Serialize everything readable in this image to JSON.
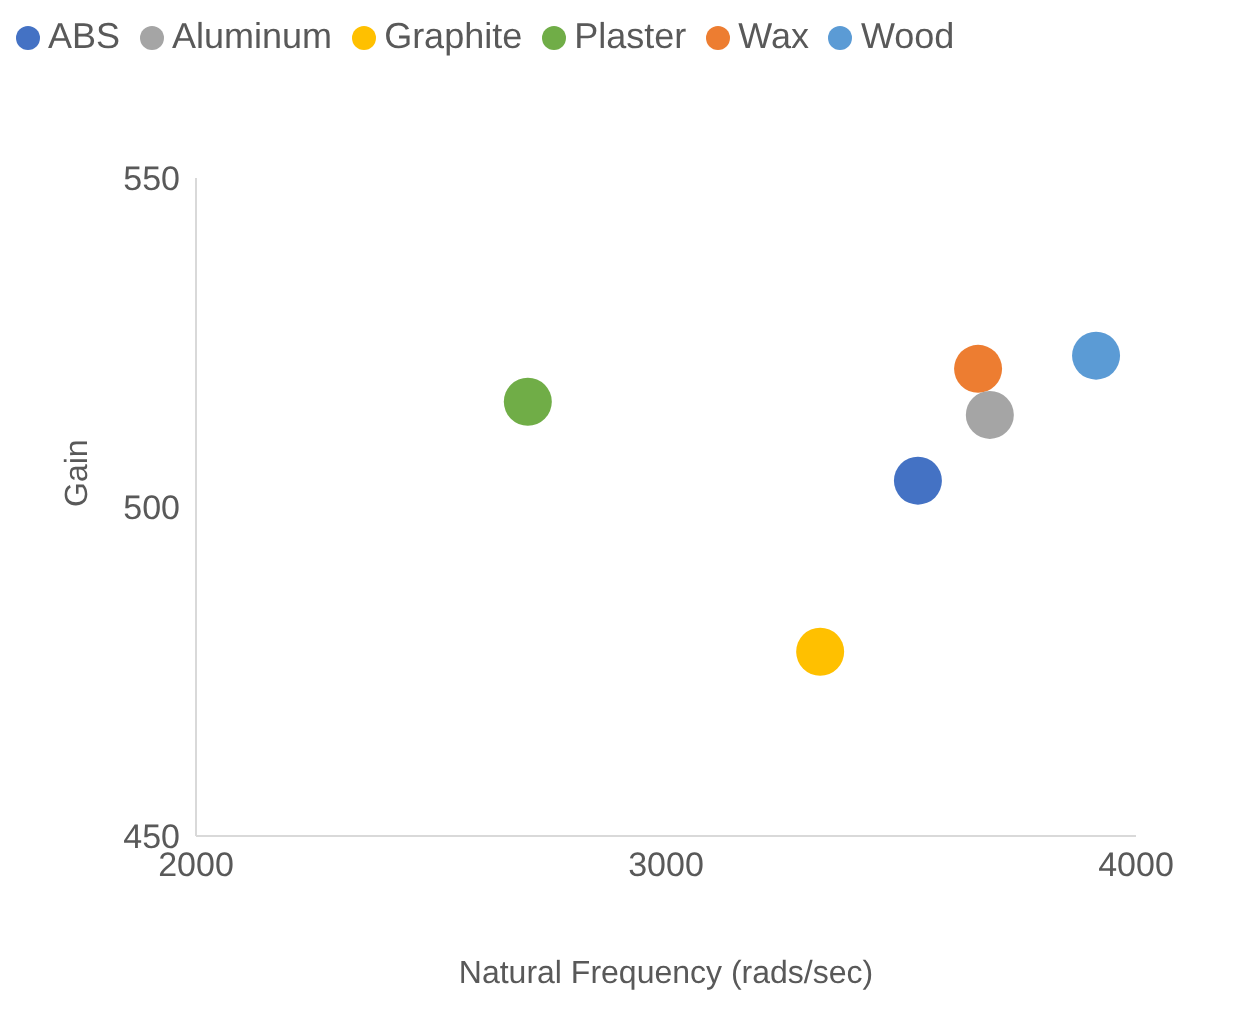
{
  "chart_data": {
    "type": "scatter",
    "xlabel": "Natural Frequency (rads/sec)",
    "ylabel": "Gain",
    "xlim": [
      2000,
      4000
    ],
    "xticks": [
      2000,
      3000,
      4000
    ],
    "ylim": [
      450,
      550
    ],
    "yticks": [
      450,
      500,
      550
    ],
    "grid": false,
    "legend": "top",
    "marker": "circle",
    "series": [
      {
        "name": "Wood",
        "color": "#5b9bd5",
        "x": [
          3915
        ],
        "values": [
          523
        ]
      },
      {
        "name": "Wax",
        "color": "#ed7d31",
        "x": [
          3664
        ],
        "values": [
          521
        ]
      },
      {
        "name": "Aluminum",
        "color": "#a5a5a5",
        "x": [
          3689
        ],
        "values": [
          514
        ]
      },
      {
        "name": "Graphite",
        "color": "#ffc000",
        "x": [
          3328
        ],
        "values": [
          478
        ]
      },
      {
        "name": "ABS",
        "color": "#4472c4",
        "x": [
          3536
        ],
        "values": [
          504
        ]
      },
      {
        "name": "Plaster",
        "color": "#70ad47",
        "x": [
          2706
        ],
        "values": [
          516
        ]
      }
    ]
  }
}
